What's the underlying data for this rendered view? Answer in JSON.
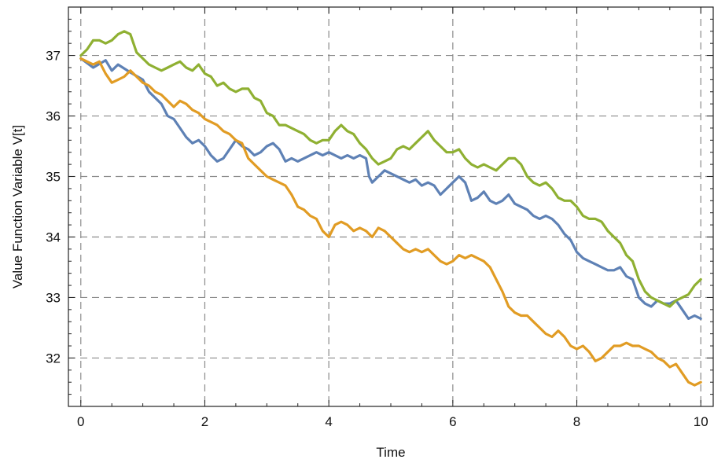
{
  "chart_data": {
    "type": "line",
    "title": "",
    "xlabel": "Time",
    "ylabel": "Value Function Variable V[t]",
    "xlim": [
      -0.2,
      10.2
    ],
    "ylim": [
      31.2,
      37.8
    ],
    "xticks": [
      0,
      2,
      4,
      6,
      8,
      10
    ],
    "yticks": [
      32,
      33,
      34,
      35,
      36,
      37
    ],
    "grid": true,
    "legend": "none",
    "series": [
      {
        "color": "#5e81b5",
        "points": [
          [
            0,
            36.95
          ],
          [
            0.2,
            36.8
          ],
          [
            0.4,
            36.92
          ],
          [
            0.5,
            36.75
          ],
          [
            0.6,
            36.85
          ],
          [
            0.8,
            36.72
          ],
          [
            1.0,
            36.6
          ],
          [
            1.1,
            36.4
          ],
          [
            1.2,
            36.3
          ],
          [
            1.3,
            36.2
          ],
          [
            1.4,
            36.0
          ],
          [
            1.5,
            35.95
          ],
          [
            1.6,
            35.8
          ],
          [
            1.7,
            35.65
          ],
          [
            1.8,
            35.55
          ],
          [
            1.9,
            35.6
          ],
          [
            2.0,
            35.5
          ],
          [
            2.1,
            35.35
          ],
          [
            2.2,
            35.25
          ],
          [
            2.3,
            35.3
          ],
          [
            2.4,
            35.45
          ],
          [
            2.5,
            35.6
          ],
          [
            2.6,
            35.5
          ],
          [
            2.7,
            35.45
          ],
          [
            2.8,
            35.35
          ],
          [
            2.9,
            35.4
          ],
          [
            3.0,
            35.5
          ],
          [
            3.1,
            35.55
          ],
          [
            3.2,
            35.45
          ],
          [
            3.3,
            35.25
          ],
          [
            3.4,
            35.3
          ],
          [
            3.5,
            35.25
          ],
          [
            3.6,
            35.3
          ],
          [
            3.7,
            35.35
          ],
          [
            3.8,
            35.4
          ],
          [
            3.9,
            35.35
          ],
          [
            4.0,
            35.4
          ],
          [
            4.1,
            35.35
          ],
          [
            4.2,
            35.3
          ],
          [
            4.3,
            35.35
          ],
          [
            4.4,
            35.3
          ],
          [
            4.5,
            35.35
          ],
          [
            4.6,
            35.3
          ],
          [
            4.65,
            35.0
          ],
          [
            4.7,
            34.9
          ],
          [
            4.8,
            35.0
          ],
          [
            4.9,
            35.1
          ],
          [
            5.0,
            35.05
          ],
          [
            5.1,
            35.0
          ],
          [
            5.2,
            34.95
          ],
          [
            5.3,
            34.9
          ],
          [
            5.4,
            34.95
          ],
          [
            5.5,
            34.85
          ],
          [
            5.6,
            34.9
          ],
          [
            5.7,
            34.85
          ],
          [
            5.8,
            34.7
          ],
          [
            5.9,
            34.8
          ],
          [
            6.0,
            34.9
          ],
          [
            6.1,
            35.0
          ],
          [
            6.2,
            34.9
          ],
          [
            6.3,
            34.6
          ],
          [
            6.4,
            34.65
          ],
          [
            6.5,
            34.75
          ],
          [
            6.6,
            34.6
          ],
          [
            6.7,
            34.55
          ],
          [
            6.8,
            34.6
          ],
          [
            6.9,
            34.7
          ],
          [
            7.0,
            34.55
          ],
          [
            7.1,
            34.5
          ],
          [
            7.2,
            34.45
          ],
          [
            7.3,
            34.35
          ],
          [
            7.4,
            34.3
          ],
          [
            7.5,
            34.35
          ],
          [
            7.6,
            34.3
          ],
          [
            7.7,
            34.2
          ],
          [
            7.8,
            34.05
          ],
          [
            7.9,
            33.95
          ],
          [
            8.0,
            33.75
          ],
          [
            8.1,
            33.65
          ],
          [
            8.2,
            33.6
          ],
          [
            8.3,
            33.55
          ],
          [
            8.4,
            33.5
          ],
          [
            8.5,
            33.45
          ],
          [
            8.6,
            33.45
          ],
          [
            8.7,
            33.5
          ],
          [
            8.8,
            33.35
          ],
          [
            8.9,
            33.3
          ],
          [
            9.0,
            33.0
          ],
          [
            9.1,
            32.9
          ],
          [
            9.2,
            32.85
          ],
          [
            9.3,
            32.95
          ],
          [
            9.4,
            32.9
          ],
          [
            9.5,
            32.9
          ],
          [
            9.6,
            32.95
          ],
          [
            9.7,
            32.8
          ],
          [
            9.8,
            32.65
          ],
          [
            9.9,
            32.7
          ],
          [
            10.0,
            32.65
          ]
        ]
      },
      {
        "color": "#e19c24",
        "points": [
          [
            0,
            36.95
          ],
          [
            0.1,
            36.9
          ],
          [
            0.2,
            36.85
          ],
          [
            0.3,
            36.9
          ],
          [
            0.4,
            36.7
          ],
          [
            0.5,
            36.55
          ],
          [
            0.6,
            36.6
          ],
          [
            0.7,
            36.65
          ],
          [
            0.8,
            36.75
          ],
          [
            0.9,
            36.65
          ],
          [
            1.0,
            36.55
          ],
          [
            1.1,
            36.5
          ],
          [
            1.2,
            36.4
          ],
          [
            1.3,
            36.35
          ],
          [
            1.4,
            36.25
          ],
          [
            1.5,
            36.15
          ],
          [
            1.6,
            36.25
          ],
          [
            1.7,
            36.2
          ],
          [
            1.8,
            36.1
          ],
          [
            1.9,
            36.05
          ],
          [
            2.0,
            35.95
          ],
          [
            2.1,
            35.9
          ],
          [
            2.2,
            35.85
          ],
          [
            2.3,
            35.75
          ],
          [
            2.4,
            35.7
          ],
          [
            2.5,
            35.6
          ],
          [
            2.6,
            35.55
          ],
          [
            2.7,
            35.3
          ],
          [
            2.8,
            35.2
          ],
          [
            2.9,
            35.1
          ],
          [
            3.0,
            35.0
          ],
          [
            3.1,
            34.95
          ],
          [
            3.2,
            34.9
          ],
          [
            3.3,
            34.85
          ],
          [
            3.4,
            34.7
          ],
          [
            3.5,
            34.5
          ],
          [
            3.6,
            34.45
          ],
          [
            3.7,
            34.35
          ],
          [
            3.8,
            34.3
          ],
          [
            3.9,
            34.1
          ],
          [
            4.0,
            34.0
          ],
          [
            4.1,
            34.2
          ],
          [
            4.2,
            34.25
          ],
          [
            4.3,
            34.2
          ],
          [
            4.4,
            34.1
          ],
          [
            4.5,
            34.15
          ],
          [
            4.6,
            34.1
          ],
          [
            4.7,
            34.0
          ],
          [
            4.8,
            34.15
          ],
          [
            4.9,
            34.1
          ],
          [
            5.0,
            34.0
          ],
          [
            5.1,
            33.9
          ],
          [
            5.2,
            33.8
          ],
          [
            5.3,
            33.75
          ],
          [
            5.4,
            33.8
          ],
          [
            5.5,
            33.75
          ],
          [
            5.6,
            33.8
          ],
          [
            5.7,
            33.7
          ],
          [
            5.8,
            33.6
          ],
          [
            5.9,
            33.55
          ],
          [
            6.0,
            33.6
          ],
          [
            6.1,
            33.7
          ],
          [
            6.2,
            33.65
          ],
          [
            6.3,
            33.7
          ],
          [
            6.4,
            33.65
          ],
          [
            6.5,
            33.6
          ],
          [
            6.6,
            33.5
          ],
          [
            6.7,
            33.3
          ],
          [
            6.8,
            33.1
          ],
          [
            6.9,
            32.85
          ],
          [
            7.0,
            32.75
          ],
          [
            7.1,
            32.7
          ],
          [
            7.2,
            32.7
          ],
          [
            7.3,
            32.6
          ],
          [
            7.4,
            32.5
          ],
          [
            7.5,
            32.4
          ],
          [
            7.6,
            32.35
          ],
          [
            7.7,
            32.45
          ],
          [
            7.8,
            32.35
          ],
          [
            7.9,
            32.2
          ],
          [
            8.0,
            32.15
          ],
          [
            8.1,
            32.2
          ],
          [
            8.2,
            32.1
          ],
          [
            8.3,
            31.95
          ],
          [
            8.4,
            32.0
          ],
          [
            8.5,
            32.1
          ],
          [
            8.6,
            32.2
          ],
          [
            8.7,
            32.2
          ],
          [
            8.8,
            32.25
          ],
          [
            8.9,
            32.2
          ],
          [
            9.0,
            32.2
          ],
          [
            9.1,
            32.15
          ],
          [
            9.2,
            32.1
          ],
          [
            9.3,
            32.0
          ],
          [
            9.4,
            31.95
          ],
          [
            9.5,
            31.85
          ],
          [
            9.6,
            31.9
          ],
          [
            9.7,
            31.75
          ],
          [
            9.8,
            31.6
          ],
          [
            9.9,
            31.55
          ],
          [
            10.0,
            31.6
          ]
        ]
      },
      {
        "color": "#8fb032",
        "points": [
          [
            0,
            37.0
          ],
          [
            0.1,
            37.1
          ],
          [
            0.2,
            37.25
          ],
          [
            0.3,
            37.25
          ],
          [
            0.4,
            37.2
          ],
          [
            0.5,
            37.25
          ],
          [
            0.6,
            37.35
          ],
          [
            0.7,
            37.4
          ],
          [
            0.8,
            37.35
          ],
          [
            0.9,
            37.05
          ],
          [
            1.0,
            36.95
          ],
          [
            1.1,
            36.85
          ],
          [
            1.2,
            36.8
          ],
          [
            1.3,
            36.75
          ],
          [
            1.4,
            36.8
          ],
          [
            1.5,
            36.85
          ],
          [
            1.6,
            36.9
          ],
          [
            1.7,
            36.8
          ],
          [
            1.8,
            36.75
          ],
          [
            1.9,
            36.85
          ],
          [
            2.0,
            36.7
          ],
          [
            2.1,
            36.65
          ],
          [
            2.2,
            36.5
          ],
          [
            2.3,
            36.55
          ],
          [
            2.4,
            36.45
          ],
          [
            2.5,
            36.4
          ],
          [
            2.6,
            36.45
          ],
          [
            2.7,
            36.45
          ],
          [
            2.8,
            36.3
          ],
          [
            2.9,
            36.25
          ],
          [
            3.0,
            36.05
          ],
          [
            3.1,
            36.0
          ],
          [
            3.2,
            35.85
          ],
          [
            3.3,
            35.85
          ],
          [
            3.4,
            35.8
          ],
          [
            3.5,
            35.75
          ],
          [
            3.6,
            35.7
          ],
          [
            3.7,
            35.6
          ],
          [
            3.8,
            35.55
          ],
          [
            3.9,
            35.6
          ],
          [
            4.0,
            35.6
          ],
          [
            4.1,
            35.75
          ],
          [
            4.2,
            35.85
          ],
          [
            4.3,
            35.75
          ],
          [
            4.4,
            35.7
          ],
          [
            4.5,
            35.55
          ],
          [
            4.6,
            35.45
          ],
          [
            4.7,
            35.3
          ],
          [
            4.8,
            35.2
          ],
          [
            4.9,
            35.25
          ],
          [
            5.0,
            35.3
          ],
          [
            5.1,
            35.45
          ],
          [
            5.2,
            35.5
          ],
          [
            5.3,
            35.45
          ],
          [
            5.4,
            35.55
          ],
          [
            5.5,
            35.65
          ],
          [
            5.6,
            35.75
          ],
          [
            5.7,
            35.6
          ],
          [
            5.8,
            35.5
          ],
          [
            5.9,
            35.4
          ],
          [
            6.0,
            35.4
          ],
          [
            6.1,
            35.45
          ],
          [
            6.2,
            35.3
          ],
          [
            6.3,
            35.2
          ],
          [
            6.4,
            35.15
          ],
          [
            6.5,
            35.2
          ],
          [
            6.6,
            35.15
          ],
          [
            6.7,
            35.1
          ],
          [
            6.8,
            35.2
          ],
          [
            6.9,
            35.3
          ],
          [
            7.0,
            35.3
          ],
          [
            7.1,
            35.2
          ],
          [
            7.2,
            35.0
          ],
          [
            7.3,
            34.9
          ],
          [
            7.4,
            34.85
          ],
          [
            7.5,
            34.9
          ],
          [
            7.6,
            34.8
          ],
          [
            7.7,
            34.65
          ],
          [
            7.8,
            34.6
          ],
          [
            7.9,
            34.6
          ],
          [
            8.0,
            34.5
          ],
          [
            8.1,
            34.35
          ],
          [
            8.2,
            34.3
          ],
          [
            8.3,
            34.3
          ],
          [
            8.4,
            34.25
          ],
          [
            8.5,
            34.1
          ],
          [
            8.6,
            34.0
          ],
          [
            8.7,
            33.9
          ],
          [
            8.8,
            33.7
          ],
          [
            8.9,
            33.6
          ],
          [
            9.0,
            33.3
          ],
          [
            9.1,
            33.1
          ],
          [
            9.2,
            33.0
          ],
          [
            9.3,
            32.95
          ],
          [
            9.4,
            32.9
          ],
          [
            9.5,
            32.85
          ],
          [
            9.6,
            32.95
          ],
          [
            9.7,
            33.0
          ],
          [
            9.8,
            33.05
          ],
          [
            9.9,
            33.2
          ],
          [
            10.0,
            33.3
          ]
        ]
      }
    ]
  }
}
